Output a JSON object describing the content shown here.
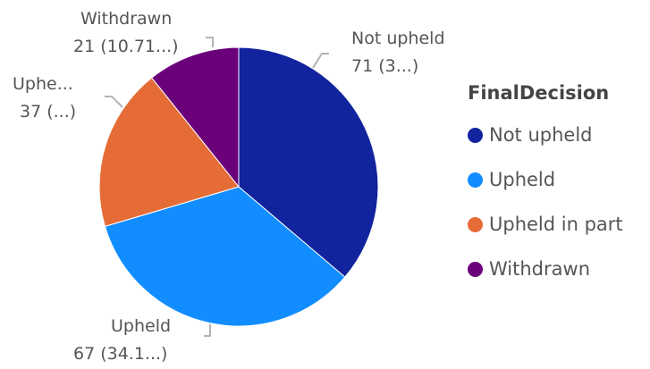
{
  "chart_data": {
    "type": "pie",
    "title": "",
    "legend_title": "FinalDecision",
    "legend_position": "right",
    "categories": [
      "Not upheld",
      "Upheld",
      "Upheld in part",
      "Withdrawn"
    ],
    "values": [
      71,
      67,
      37,
      21
    ],
    "colors": [
      "#12239E",
      "#118DFF",
      "#E66C37",
      "#6B007B"
    ],
    "data_labels": [
      {
        "category": "Not upheld",
        "name_text": "Not upheld",
        "value_text": "71 (3...)"
      },
      {
        "category": "Upheld",
        "name_text": "Upheld",
        "value_text": "67 (34.1...)"
      },
      {
        "category": "Upheld in part",
        "name_text": "Uphe...",
        "value_text": "37 (...)"
      },
      {
        "category": "Withdrawn",
        "name_text": "Withdrawn",
        "value_text": "21 (10.71...)"
      }
    ]
  }
}
